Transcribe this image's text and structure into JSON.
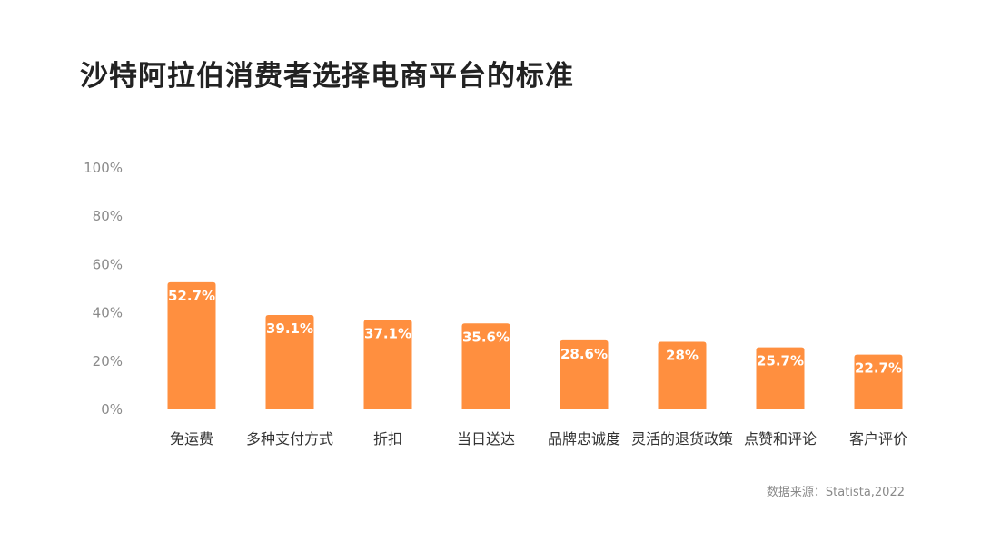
{
  "chart_data": {
    "type": "bar",
    "title": "沙特阿拉伯消费者选择电商平台的标准",
    "categories": [
      "免运费",
      "多种支付方式",
      "折扣",
      "当日送达",
      "品牌忠诚度",
      "灵活的退货政策",
      "点赞和评论",
      "客户评价"
    ],
    "values": [
      52.7,
      39.1,
      37.1,
      35.6,
      28.6,
      28,
      25.7,
      22.7
    ],
    "data_labels": [
      "52.7%",
      "39.1%",
      "37.1%",
      "35.6%",
      "28.6%",
      "28%",
      "25.7%",
      "22.7%"
    ],
    "ylim": [
      0,
      100
    ],
    "yticks": [
      0,
      20,
      40,
      60,
      80,
      100
    ],
    "ytick_labels": [
      "0%",
      "20%",
      "40%",
      "60%",
      "80%",
      "100%"
    ],
    "grid": false,
    "bar_color": "#FF8F3F",
    "source": "数据来源：Statista,2022"
  }
}
